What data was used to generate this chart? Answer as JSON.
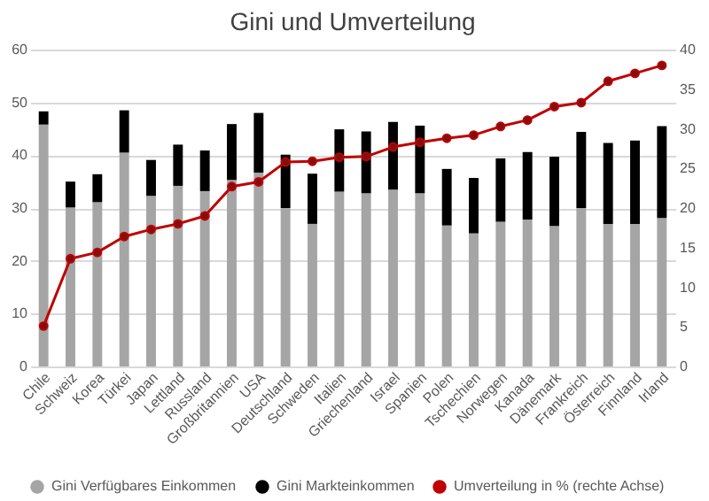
{
  "chart_data": {
    "type": "bar",
    "title": "Gini und Umverteilung",
    "categories": [
      "Chile",
      "Schweiz",
      "Korea",
      "Türkei",
      "Japan",
      "Lettland",
      "Russland",
      "Großbritannien",
      "USA",
      "Deutschland",
      "Schweden",
      "Italien",
      "Griechenland",
      "Israel",
      "Spanien",
      "Polen",
      "Tschechien",
      "Norwegen",
      "Kanada",
      "Dänemark",
      "Frankreich",
      "Österreich",
      "Finnland",
      "Irland"
    ],
    "stacked": true,
    "series": [
      {
        "name": "Gini Verfügbares Einkommen",
        "color": "#a5a5a5",
        "values": [
          45.8,
          30.1,
          31.1,
          40.5,
          32.3,
          34.2,
          33.2,
          35.3,
          36.7,
          30.0,
          27.0,
          33.1,
          32.8,
          33.5,
          32.8,
          26.7,
          25.2,
          27.4,
          27.8,
          26.6,
          30.0,
          27.0,
          27.0,
          28.1
        ]
      },
      {
        "name": "Gini Markteinkommen",
        "color": "#000000",
        "values": [
          2.5,
          4.9,
          5.3,
          8.0,
          6.8,
          7.8,
          7.7,
          10.6,
          11.3,
          10.1,
          9.5,
          11.8,
          11.7,
          12.8,
          12.8,
          10.7,
          10.5,
          12.0,
          12.8,
          13.1,
          14.4,
          15.3,
          15.8,
          17.4
        ]
      },
      {
        "name": "Umverteilung in % (rechte Achse)",
        "type": "line",
        "axis": "y2",
        "color": "#c00000",
        "marker": "circle",
        "line_style": "solid",
        "values": [
          5.1,
          13.6,
          14.4,
          16.4,
          17.3,
          18.0,
          19.0,
          22.7,
          23.3,
          25.8,
          25.9,
          26.4,
          26.5,
          27.7,
          28.3,
          28.8,
          29.2,
          30.3,
          31.1,
          32.8,
          33.3,
          36.0,
          37.0,
          38.0
        ]
      }
    ],
    "ylim": [
      0,
      60
    ],
    "yticks": [
      0,
      10,
      20,
      30,
      40,
      50,
      60
    ],
    "y2lim": [
      0,
      40
    ],
    "y2ticks": [
      0,
      5,
      10,
      15,
      20,
      25,
      30,
      35,
      40
    ],
    "grid": "y",
    "legend": "bottom"
  }
}
